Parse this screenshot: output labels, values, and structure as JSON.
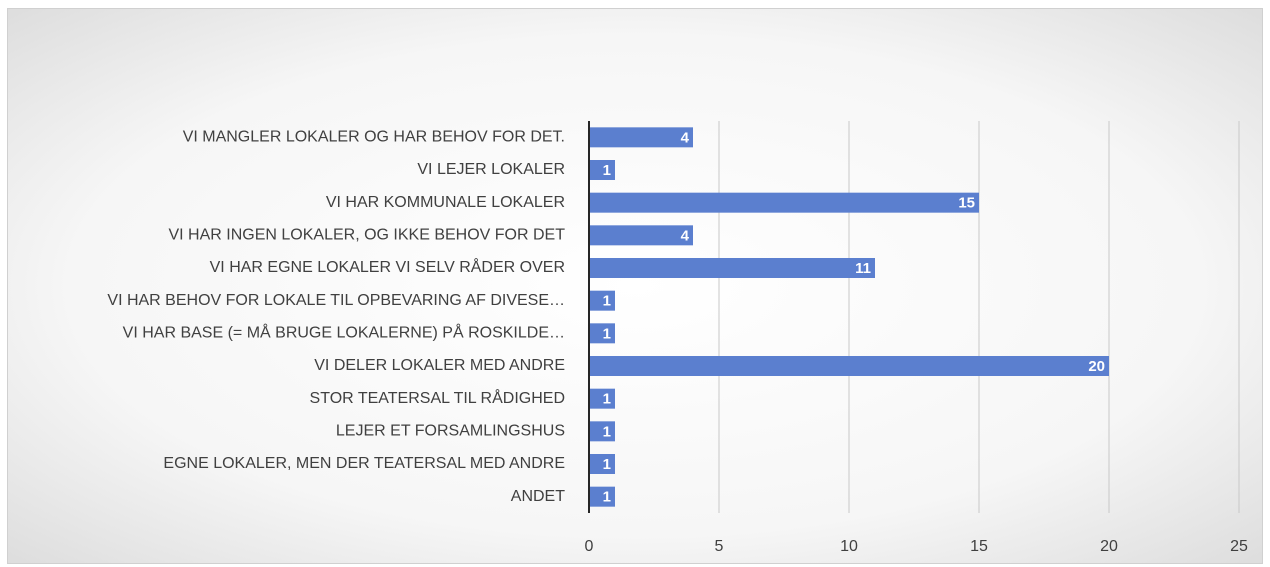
{
  "chart_data": {
    "type": "bar",
    "orientation": "horizontal",
    "categories": [
      "VI MANGLER LOKALER OG HAR BEHOV FOR DET.",
      "VI LEJER LOKALER",
      "VI HAR KOMMUNALE LOKALER",
      "VI HAR INGEN LOKALER, OG IKKE BEHOV FOR DET",
      "VI HAR EGNE LOKALER VI SELV RÅDER OVER",
      "VI HAR BEHOV FOR LOKALE TIL OPBEVARING AF DIVESE…",
      "VI HAR BASE (= MÅ BRUGE LOKALERNE) PÅ ROSKILDE…",
      "VI DELER LOKALER MED ANDRE",
      "STOR TEATERSAL TIL RÅDIGHED",
      "LEJER ET FORSAMLINGSHUS",
      "EGNE LOKALER, MEN DER TEATERSAL MED ANDRE",
      "ANDET"
    ],
    "values": [
      4,
      1,
      15,
      4,
      11,
      1,
      1,
      20,
      1,
      1,
      1,
      1
    ],
    "color": "#5b7fcf",
    "xlim": [
      0,
      25
    ],
    "xticks": [
      0,
      5,
      10,
      15,
      20,
      25
    ],
    "grid": true
  }
}
